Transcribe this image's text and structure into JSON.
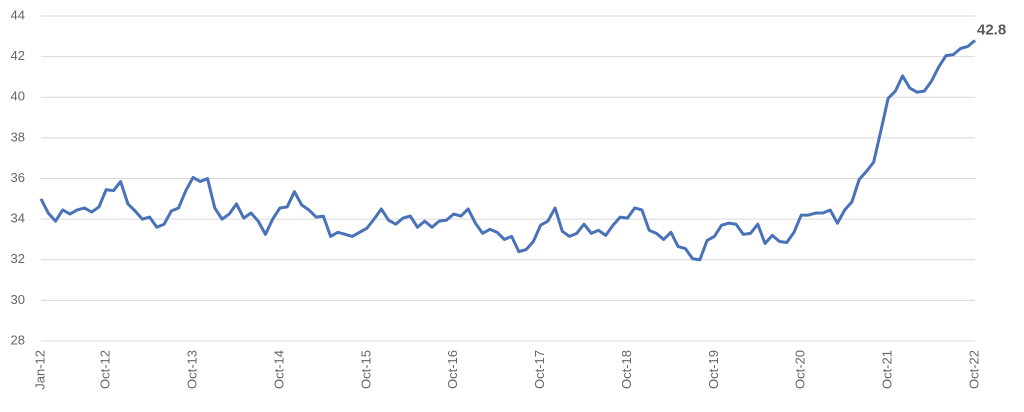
{
  "chart_data": {
    "type": "line",
    "categories": [
      "Jan-12",
      null,
      null,
      null,
      null,
      null,
      null,
      null,
      null,
      "Oct-12",
      null,
      null,
      null,
      null,
      null,
      null,
      null,
      null,
      null,
      null,
      null,
      "Oct-13",
      null,
      null,
      null,
      null,
      null,
      null,
      null,
      null,
      null,
      null,
      null,
      "Oct-14",
      null,
      null,
      null,
      null,
      null,
      null,
      null,
      null,
      null,
      null,
      null,
      "Oct-15",
      null,
      null,
      null,
      null,
      null,
      null,
      null,
      null,
      null,
      null,
      null,
      "Oct-16",
      null,
      null,
      null,
      null,
      null,
      null,
      null,
      null,
      null,
      null,
      null,
      "Oct-17",
      null,
      null,
      null,
      null,
      null,
      null,
      null,
      null,
      null,
      null,
      null,
      "Oct-18",
      null,
      null,
      null,
      null,
      null,
      null,
      null,
      null,
      null,
      null,
      null,
      "Oct-19",
      null,
      null,
      null,
      null,
      null,
      null,
      null,
      null,
      null,
      null,
      null,
      "Oct-20",
      null,
      null,
      null,
      null,
      null,
      null,
      null,
      null,
      null,
      null,
      null,
      "Oct-21",
      null,
      null,
      null,
      null,
      null,
      null,
      null,
      null,
      null,
      null,
      null,
      "Oct-22"
    ],
    "values": [
      35.0,
      34.3,
      33.9,
      34.45,
      34.25,
      34.45,
      34.55,
      34.35,
      34.6,
      35.45,
      35.4,
      35.85,
      34.75,
      34.4,
      34.0,
      34.1,
      33.6,
      33.75,
      34.4,
      34.55,
      35.4,
      36.05,
      35.85,
      36.0,
      34.55,
      34.0,
      34.25,
      34.75,
      34.05,
      34.3,
      33.9,
      33.25,
      34.0,
      34.55,
      34.6,
      35.35,
      34.7,
      34.45,
      34.1,
      34.15,
      33.15,
      33.35,
      33.25,
      33.15,
      33.35,
      33.55,
      34.0,
      34.5,
      33.95,
      33.75,
      34.05,
      34.15,
      33.6,
      33.9,
      33.6,
      33.9,
      33.95,
      34.25,
      34.15,
      34.5,
      33.8,
      33.3,
      33.5,
      33.35,
      33.0,
      33.15,
      32.4,
      32.5,
      32.9,
      33.7,
      33.9,
      34.55,
      33.4,
      33.15,
      33.3,
      33.75,
      33.3,
      33.45,
      33.2,
      33.7,
      34.1,
      34.05,
      34.55,
      34.45,
      33.45,
      33.3,
      33.0,
      33.35,
      32.65,
      32.55,
      32.05,
      32.0,
      32.95,
      33.15,
      33.7,
      33.8,
      33.75,
      33.25,
      33.3,
      33.75,
      32.8,
      33.2,
      32.9,
      32.85,
      33.35,
      34.2,
      34.2,
      34.3,
      34.3,
      34.45,
      33.8,
      34.45,
      34.85,
      35.95,
      36.35,
      36.8,
      38.35,
      39.95,
      40.3,
      41.05,
      40.45,
      40.25,
      40.3,
      40.8,
      41.5,
      42.05,
      42.1,
      42.4,
      42.5,
      42.8
    ],
    "color": "#4a72b8",
    "ylim": [
      28,
      44
    ],
    "yticks": [
      28,
      30,
      32,
      34,
      36,
      38,
      40,
      42,
      44
    ],
    "grid": true
  }
}
